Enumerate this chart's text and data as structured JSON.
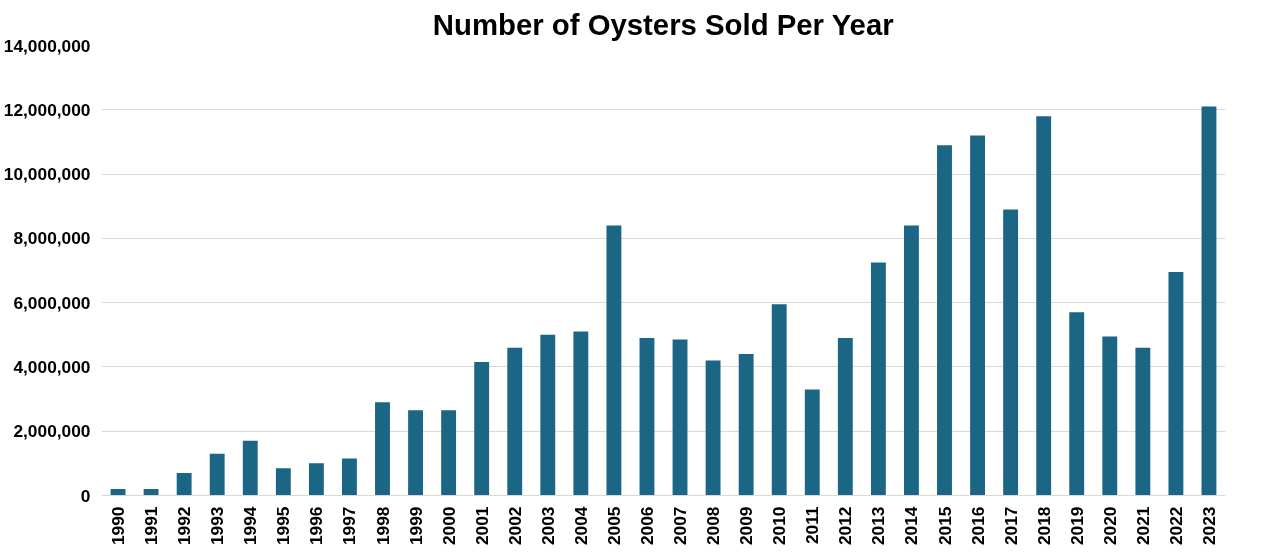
{
  "chart_data": {
    "type": "bar",
    "title": "Number of Oysters Sold Per Year",
    "categories": [
      "1990",
      "1991",
      "1992",
      "1993",
      "1994",
      "1995",
      "1996",
      "1997",
      "1998",
      "1999",
      "2000",
      "2001",
      "2002",
      "2003",
      "2004",
      "2005",
      "2006",
      "2007",
      "2008",
      "2009",
      "2010",
      "2011",
      "2012",
      "2013",
      "2014",
      "2015",
      "2016",
      "2017",
      "2018",
      "2019",
      "2020",
      "2021",
      "2022",
      "2023"
    ],
    "values": [
      200000,
      200000,
      700000,
      1300000,
      1700000,
      850000,
      1000000,
      1150000,
      2900000,
      2650000,
      2650000,
      4150000,
      4600000,
      5000000,
      5100000,
      8400000,
      4900000,
      4850000,
      4200000,
      4400000,
      5950000,
      3300000,
      4900000,
      7250000,
      8400000,
      10900000,
      11200000,
      8900000,
      11800000,
      5700000,
      4950000,
      4600000,
      6950000,
      12100000
    ],
    "color": "#1b6585",
    "ylim": [
      0,
      14000000
    ],
    "yticks": [
      {
        "value": 0,
        "label": "0"
      },
      {
        "value": 2000000,
        "label": "2,000,000"
      },
      {
        "value": 4000000,
        "label": "4,000,000"
      },
      {
        "value": 6000000,
        "label": "6,000,000"
      },
      {
        "value": 8000000,
        "label": "8,000,000"
      },
      {
        "value": 10000000,
        "label": "10,000,000"
      },
      {
        "value": 12000000,
        "label": "12,000,000"
      },
      {
        "value": 14000000,
        "label": "14,000,000"
      }
    ],
    "grid": "y"
  }
}
